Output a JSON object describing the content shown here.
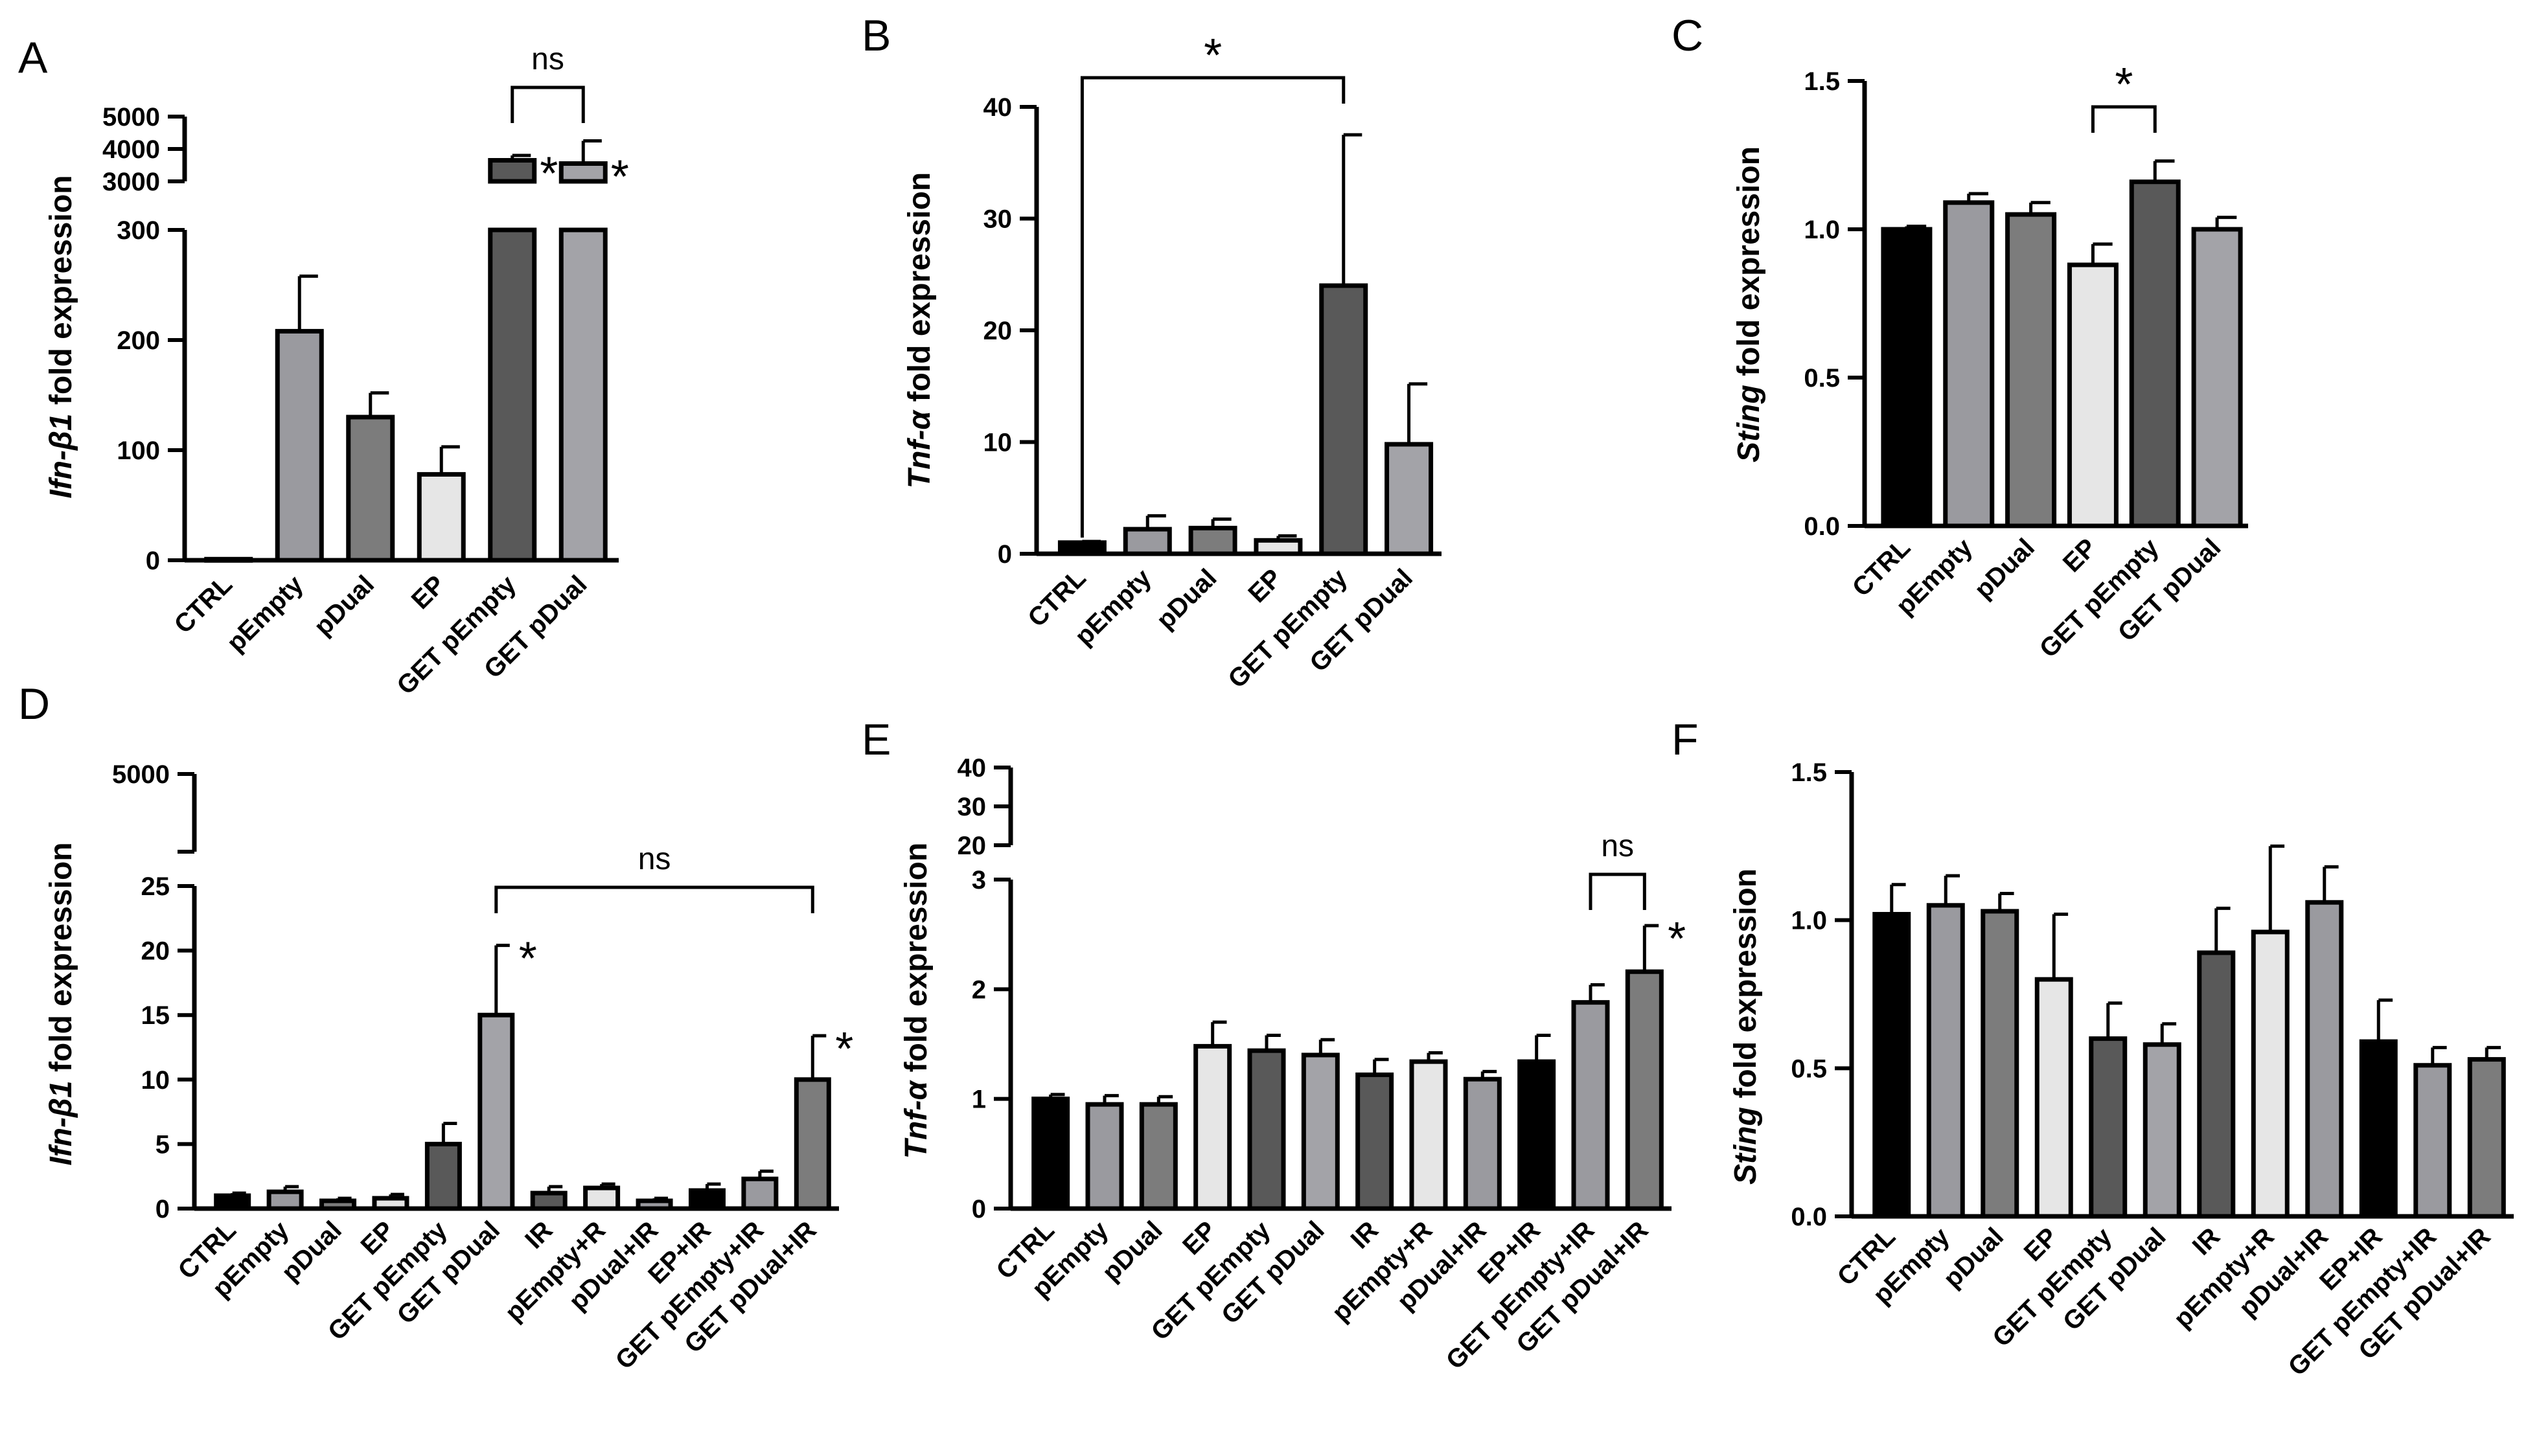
{
  "colors": {
    "black": "#000000",
    "light_gray": "#9a9a9f",
    "mid_gray": "#7c7c7c",
    "very_light": "#e6e6e6",
    "dark_gray": "#595959",
    "medium_gray2": "#a3a3a8"
  },
  "chart_data": [
    {
      "panel": "A",
      "type": "bar",
      "ylabel_italic": "Ifn-β1",
      "ylabel_rest": " fold expression",
      "categories": [
        "CTRL",
        "pEmpty",
        "pDual",
        "EP",
        "GET pEmpty",
        "GET pDual"
      ],
      "values": [
        1,
        208,
        130,
        78,
        3650,
        3550
      ],
      "errors": [
        0,
        50,
        22,
        25,
        150,
        700
      ],
      "bar_colors": [
        "black",
        "light_gray",
        "mid_gray",
        "very_light",
        "dark_gray",
        "medium_gray2"
      ],
      "y_broken": true,
      "y_lower_range": [
        0,
        300
      ],
      "y_lower_ticks": [
        "0",
        "100",
        "200",
        "300"
      ],
      "y_upper_range": [
        3000,
        5000
      ],
      "y_upper_ticks": [
        "3000",
        "4000",
        "5000"
      ],
      "stars": [
        "4",
        "5"
      ],
      "brackets": [
        {
          "from": 4,
          "to": 5,
          "label": "ns"
        }
      ]
    },
    {
      "panel": "B",
      "type": "bar",
      "ylabel_italic": "Tnf-α",
      "ylabel_rest": " fold expression",
      "categories": [
        "CTRL",
        "pEmpty",
        "pDual",
        "EP",
        "GET pEmpty",
        "GET pDual"
      ],
      "values": [
        1,
        2.2,
        2.3,
        1.2,
        24,
        9.8
      ],
      "errors": [
        0.1,
        1.2,
        0.8,
        0.4,
        13.5,
        5.4
      ],
      "bar_colors": [
        "black",
        "light_gray",
        "mid_gray",
        "very_light",
        "dark_gray",
        "medium_gray2"
      ],
      "ylim": [
        0,
        40
      ],
      "yticks": [
        "0",
        "10",
        "20",
        "30",
        "40"
      ],
      "brackets": [
        {
          "from": 0,
          "to": 4,
          "label": "*"
        }
      ]
    },
    {
      "panel": "C",
      "type": "bar",
      "ylabel_italic": "Sting",
      "ylabel_rest": " fold expression",
      "categories": [
        "CTRL",
        "pEmpty",
        "pDual",
        "EP",
        "GET pEmpty",
        "GET pDual"
      ],
      "values": [
        1.0,
        1.09,
        1.05,
        0.88,
        1.16,
        1.0
      ],
      "errors": [
        0.01,
        0.03,
        0.04,
        0.07,
        0.07,
        0.04
      ],
      "bar_colors": [
        "black",
        "light_gray",
        "mid_gray",
        "very_light",
        "dark_gray",
        "medium_gray2"
      ],
      "ylim": [
        0,
        1.5
      ],
      "yticks": [
        "0.0",
        "0.5",
        "1.0",
        "1.5"
      ],
      "brackets": [
        {
          "from": 3,
          "to": 4,
          "label": "*"
        }
      ]
    },
    {
      "panel": "D",
      "type": "bar",
      "ylabel_italic": "Ifn-β1",
      "ylabel_rest": " fold expression",
      "categories": [
        "CTRL",
        "pEmpty",
        "pDual",
        "EP",
        "GET pEmpty",
        "GET pDual",
        "IR",
        "pEmpty+R",
        "pDual+IR",
        "EP+IR",
        "GET pEmpty+IR",
        "GET pDual+IR"
      ],
      "values": [
        1.0,
        1.3,
        0.6,
        0.8,
        5.0,
        15.0,
        1.2,
        1.6,
        0.6,
        1.4,
        2.3,
        10.0
      ],
      "errors": [
        0.2,
        0.4,
        0.2,
        0.3,
        1.6,
        5.4,
        0.5,
        0.3,
        0.2,
        0.5,
        0.6,
        3.4
      ],
      "bar_colors": [
        "black",
        "light_gray",
        "mid_gray",
        "very_light",
        "dark_gray",
        "medium_gray2",
        "dark_gray",
        "very_light",
        "light_gray",
        "black",
        "light_gray",
        "mid_gray"
      ],
      "y_broken": true,
      "y_lower_range": [
        0,
        25
      ],
      "y_lower_ticks": [
        "0",
        "5",
        "10",
        "15",
        "20",
        "25"
      ],
      "y_upper_ticks": [
        "5000"
      ],
      "stars": [
        "5",
        "11"
      ],
      "brackets": [
        {
          "from": 5,
          "to": 11,
          "label": "ns"
        }
      ]
    },
    {
      "panel": "E",
      "type": "bar",
      "ylabel_italic": "Tnf-α",
      "ylabel_rest": " fold expression",
      "categories": [
        "CTRL",
        "pEmpty",
        "pDual",
        "EP",
        "GET pEmpty",
        "GET pDual",
        "IR",
        "pEmpty+R",
        "pDual+IR",
        "EP+IR",
        "GET pEmpty+IR",
        "GET pDual+IR"
      ],
      "values": [
        1.0,
        0.95,
        0.95,
        1.48,
        1.44,
        1.4,
        1.22,
        1.34,
        1.18,
        1.34,
        1.88,
        2.16
      ],
      "errors": [
        0.04,
        0.08,
        0.07,
        0.22,
        0.14,
        0.14,
        0.14,
        0.08,
        0.07,
        0.24,
        0.16,
        0.42
      ],
      "bar_colors": [
        "black",
        "light_gray",
        "mid_gray",
        "very_light",
        "dark_gray",
        "medium_gray2",
        "dark_gray",
        "very_light",
        "light_gray",
        "black",
        "light_gray",
        "mid_gray"
      ],
      "y_broken": true,
      "y_lower_range": [
        0,
        3
      ],
      "y_lower_ticks": [
        "0",
        "1",
        "2",
        "3"
      ],
      "y_upper_range": [
        20,
        40
      ],
      "y_upper_ticks": [
        "20",
        "30",
        "40"
      ],
      "stars": [
        "11"
      ],
      "brackets": [
        {
          "from": 10,
          "to": 11,
          "label": "ns"
        }
      ]
    },
    {
      "panel": "F",
      "type": "bar",
      "ylabel_italic": "Sting",
      "ylabel_rest": " fold expression",
      "categories": [
        "CTRL",
        "pEmpty",
        "pDual",
        "EP",
        "GET pEmpty",
        "GET pDual",
        "IR",
        "pEmpty+R",
        "pDual+IR",
        "EP+IR",
        "GET pEmpty+IR",
        "GET pDual+IR"
      ],
      "values": [
        1.02,
        1.05,
        1.03,
        0.8,
        0.6,
        0.58,
        0.89,
        0.96,
        1.06,
        0.59,
        0.51,
        0.53
      ],
      "errors": [
        0.1,
        0.1,
        0.06,
        0.22,
        0.12,
        0.07,
        0.15,
        0.29,
        0.12,
        0.14,
        0.06,
        0.04
      ],
      "bar_colors": [
        "black",
        "light_gray",
        "mid_gray",
        "very_light",
        "dark_gray",
        "medium_gray2",
        "dark_gray",
        "very_light",
        "light_gray",
        "black",
        "light_gray",
        "mid_gray"
      ],
      "ylim": [
        0,
        1.5
      ],
      "yticks": [
        "0.0",
        "0.5",
        "1.0",
        "1.5"
      ]
    }
  ]
}
